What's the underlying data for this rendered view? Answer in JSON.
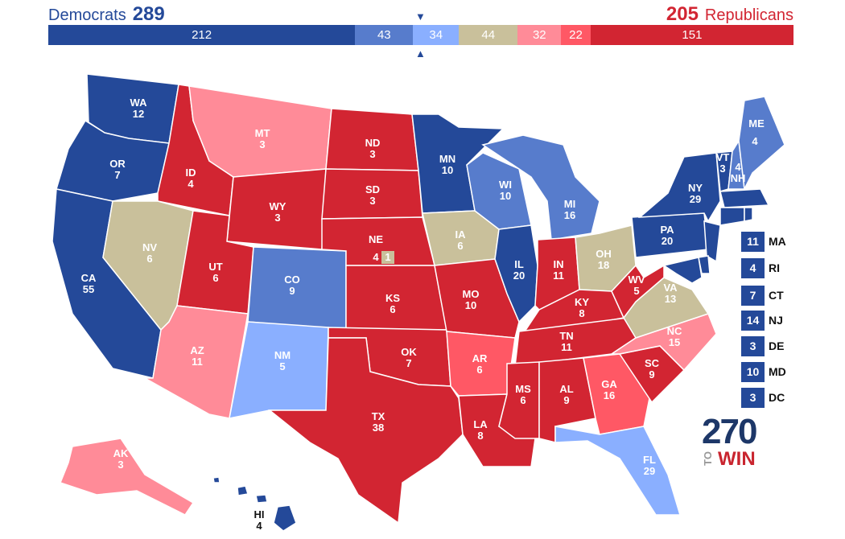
{
  "header": {
    "dem_label": "Democrats",
    "dem_total": "289",
    "rep_total": "205",
    "rep_label": "Republicans"
  },
  "marker_colors": {
    "arrow": "#244999"
  },
  "bar": [
    {
      "value": "212",
      "color": "#244999"
    },
    {
      "value": "43",
      "color": "#577ccc"
    },
    {
      "value": "34",
      "color": "#8aafff"
    },
    {
      "value": "44",
      "color": "#c9c09b"
    },
    {
      "value": "32",
      "color": "#ff8b98"
    },
    {
      "value": "22",
      "color": "#ff5865"
    },
    {
      "value": "151",
      "color": "#d22532"
    }
  ],
  "colors": {
    "safe_d": "#244999",
    "likely_d": "#577ccc",
    "lean_d": "#8aafff",
    "tossup": "#c9c09b",
    "lean_r": "#ff8b98",
    "likely_r": "#ff5865",
    "safe_r": "#d22532"
  },
  "states": {
    "WA": "12",
    "OR": "7",
    "CA": "55",
    "ID": "4",
    "NV": "6",
    "MT": "3",
    "WY": "3",
    "UT": "6",
    "AZ": "11",
    "CO": "9",
    "NM": "5",
    "ND": "3",
    "SD": "3",
    "NE": "4",
    "NE_CD": "1",
    "KS": "6",
    "OK": "7",
    "TX": "38",
    "MN": "10",
    "IA": "6",
    "MO": "10",
    "AR": "6",
    "LA": "8",
    "WI": "10",
    "IL": "20",
    "MI": "16",
    "IN": "11",
    "OH": "18",
    "KY": "8",
    "TN": "11",
    "MS": "6",
    "AL": "9",
    "GA": "16",
    "FL": "29",
    "SC": "9",
    "NC": "15",
    "VA": "13",
    "WV": "5",
    "PA": "20",
    "NY": "29",
    "VT": "3",
    "NH": "4",
    "ME": "4",
    "AK": "3",
    "HI": "4"
  },
  "small_states": [
    {
      "abbr": "MA",
      "ev": "11"
    },
    {
      "abbr": "RI",
      "ev": "4"
    },
    {
      "abbr": "CT",
      "ev": "7"
    },
    {
      "abbr": "NJ",
      "ev": "14"
    },
    {
      "abbr": "DE",
      "ev": "3"
    },
    {
      "abbr": "MD",
      "ev": "10"
    },
    {
      "abbr": "DC",
      "ev": "3"
    }
  ],
  "logo": {
    "number": "270",
    "to": "TO",
    "win": "WIN"
  }
}
